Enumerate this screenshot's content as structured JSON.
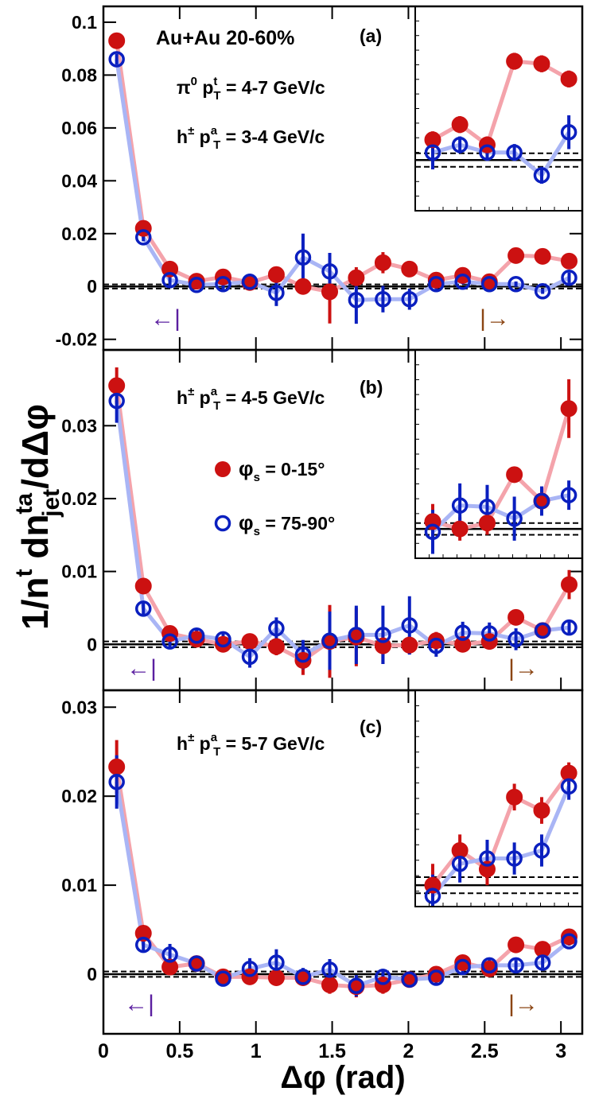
{
  "chart_data": [
    {
      "type": "line",
      "label": "(a)",
      "system": "Au+Au 20-60%",
      "trigger": [
        "π",
        "0",
        " p",
        "t",
        "T",
        " = 4-7 GeV/c"
      ],
      "assoc": [
        "h",
        "±",
        " p",
        "a",
        "T",
        " = 3-4 GeV/c"
      ],
      "arrows": [
        {
          "text": "←|",
          "color": "#5b1fa0"
        },
        {
          "text": "|→",
          "color": "#8b4513"
        }
      ],
      "x": [
        0.087,
        0.262,
        0.436,
        0.611,
        0.785,
        0.96,
        1.134,
        1.309,
        1.484,
        1.658,
        1.833,
        2.007,
        2.182,
        2.356,
        2.531,
        2.705,
        2.88,
        3.054
      ],
      "xlim": [
        0,
        3.14
      ],
      "xticks": [
        0,
        0.5,
        1,
        1.5,
        2,
        2.5,
        3
      ],
      "ylim": [
        -0.024,
        0.106
      ],
      "yticks": [
        -0.02,
        0,
        0.02,
        0.04,
        0.06,
        0.08,
        0.1
      ],
      "band": 0.0008,
      "inset": {
        "xlim": [
          2.07,
          3.14
        ],
        "ylim": [
          -0.006,
          0.0182
        ]
      },
      "series": [
        {
          "color": "#cc1111",
          "line_color": "#f4a3ab",
          "marker": "filled",
          "values": [
            0.093,
            0.022,
            0.0066,
            0.002,
            0.0036,
            0.0015,
            0.0045,
            0.0,
            -0.002,
            0.0033,
            0.009,
            0.0066,
            0.0024,
            0.0042,
            0.0018,
            0.0117,
            0.0114,
            0.0096
          ],
          "errors": [
            0.002,
            0.0015,
            0.001,
            0.001,
            0.001,
            0.001,
            0.002,
            0.003,
            0.012,
            0.004,
            0.004,
            0.001,
            0.001,
            0.001,
            0.001,
            0.001,
            0.001,
            0.001
          ]
        },
        {
          "color": "#0a1fbf",
          "line_color": "#a9b5f5",
          "marker": "open",
          "values": [
            0.086,
            0.0186,
            0.0024,
            0.0006,
            0.0009,
            0.0018,
            -0.0024,
            0.011,
            0.0057,
            -0.0051,
            -0.0048,
            -0.0048,
            0.0009,
            0.0018,
            0.0009,
            0.0009,
            -0.0018,
            0.0033
          ],
          "errors": [
            0.002,
            0.0015,
            0.002,
            0.001,
            0.002,
            0.003,
            0.005,
            0.009,
            0.007,
            0.009,
            0.005,
            0.004,
            0.002,
            0.001,
            0.001,
            0.001,
            0.001,
            0.002
          ]
        }
      ]
    },
    {
      "type": "line",
      "label": "(b)",
      "assoc": [
        "h",
        "±",
        " p",
        "a",
        "T",
        " = 4-5 GeV/c"
      ],
      "ylabel": [
        "1/n",
        "t",
        " dn",
        "ta",
        "jet",
        "/dΔφ"
      ],
      "arrows": [
        {
          "text": "←|",
          "color": "#5b1fa0"
        },
        {
          "text": "|→",
          "color": "#8b4513"
        }
      ],
      "x": [
        0.087,
        0.262,
        0.436,
        0.611,
        0.785,
        0.96,
        1.134,
        1.309,
        1.484,
        1.658,
        1.833,
        2.007,
        2.182,
        2.356,
        2.531,
        2.705,
        2.88,
        3.054
      ],
      "xlim": [
        0,
        3.14
      ],
      "xticks": [
        0,
        0.5,
        1,
        1.5,
        2,
        2.5,
        3
      ],
      "ylim": [
        -0.0063,
        0.0404
      ],
      "yticks": [
        0,
        0.01,
        0.02,
        0.03
      ],
      "band": 0.0004,
      "inset": {
        "xlim": [
          2.07,
          3.14
        ],
        "ylim": [
          -0.002,
          0.0122
        ]
      },
      "series": [
        {
          "name": [
            "φ",
            "s",
            " =  0-15°"
          ],
          "color": "#cc1111",
          "line_color": "#f4a3ab",
          "marker": "filled",
          "values": [
            0.0355,
            0.008,
            0.0015,
            0.0007,
            0.0,
            0.0004,
            -0.0003,
            -0.0022,
            0.0004,
            0.001,
            -0.0002,
            -0.0001,
            0.0005,
            0.0,
            0.0004,
            0.0037,
            0.0019,
            0.0082
          ],
          "errors": [
            0.0025,
            0.0007,
            0.0007,
            0.0005,
            0.0006,
            0.0005,
            0.0012,
            0.002,
            0.005,
            0.004,
            0.0025,
            0.0012,
            0.0012,
            0.0008,
            0.0008,
            0.0005,
            0.0005,
            0.002
          ]
        },
        {
          "name": [
            "φ",
            "s",
            " = 75-90°"
          ],
          "color": "#0a1fbf",
          "line_color": "#a9b5f5",
          "marker": "open",
          "values": [
            0.0334,
            0.0049,
            0.0004,
            0.0012,
            0.0007,
            -0.0017,
            0.0022,
            -0.0014,
            0.0005,
            0.0013,
            0.0013,
            0.0026,
            -0.0002,
            0.0016,
            0.0015,
            0.0007,
            0.0019,
            0.0023
          ],
          "errors": [
            0.003,
            0.0008,
            0.001,
            0.001,
            0.001,
            0.0015,
            0.0015,
            0.002,
            0.004,
            0.004,
            0.004,
            0.004,
            0.0015,
            0.0015,
            0.0015,
            0.0015,
            0.001,
            0.001
          ]
        }
      ]
    },
    {
      "type": "line",
      "label": "(c)",
      "assoc": [
        "h",
        "±",
        " p",
        "a",
        "T",
        " = 5-7 GeV/c"
      ],
      "xlabel": "Δφ (rad)",
      "arrows": [
        {
          "text": "←|",
          "color": "#5b1fa0"
        },
        {
          "text": "|→",
          "color": "#8b4513"
        }
      ],
      "x": [
        0.087,
        0.262,
        0.436,
        0.611,
        0.785,
        0.96,
        1.134,
        1.309,
        1.484,
        1.658,
        1.833,
        2.007,
        2.182,
        2.356,
        2.531,
        2.705,
        2.88,
        3.054
      ],
      "xlim": [
        0,
        3.14
      ],
      "xticks": [
        0,
        0.5,
        1,
        1.5,
        2,
        2.5,
        3
      ],
      "ylim": [
        -0.0067,
        0.0319
      ],
      "yticks": [
        0,
        0.01,
        0.02,
        0.03
      ],
      "band": 0.0003,
      "inset": {
        "xlim": [
          2.07,
          3.14
        ],
        "ylim": [
          -0.0008,
          0.0073
        ]
      },
      "series": [
        {
          "color": "#cc1111",
          "line_color": "#f4a3ab",
          "marker": "filled",
          "values": [
            0.0233,
            0.0046,
            0.0008,
            0.0012,
            -0.0003,
            -0.0003,
            -0.0004,
            -0.0004,
            -0.0012,
            -0.0014,
            -0.0012,
            -0.0006,
            0.0,
            0.0013,
            0.0006,
            0.0033,
            0.0028,
            0.0042
          ],
          "errors": [
            0.003,
            0.0005,
            0.0005,
            0.0004,
            0.0005,
            0.0005,
            0.0007,
            0.0008,
            0.001,
            0.0012,
            0.001,
            0.0008,
            0.0008,
            0.0006,
            0.0006,
            0.0005,
            0.0005,
            0.0004
          ]
        },
        {
          "color": "#0a1fbf",
          "line_color": "#a9b5f5",
          "marker": "open",
          "values": [
            0.0216,
            0.0033,
            0.0022,
            0.0012,
            -0.0005,
            0.0006,
            0.0013,
            -0.0003,
            0.0005,
            -0.0013,
            -0.0003,
            -0.0006,
            -0.0004,
            0.0008,
            0.001,
            0.001,
            0.0013,
            0.0037
          ],
          "errors": [
            0.003,
            0.0007,
            0.0012,
            0.0008,
            0.0007,
            0.0012,
            0.0015,
            0.001,
            0.0012,
            0.0012,
            0.0009,
            0.0009,
            0.0008,
            0.0007,
            0.0007,
            0.0006,
            0.0006,
            0.0005
          ]
        }
      ]
    }
  ]
}
